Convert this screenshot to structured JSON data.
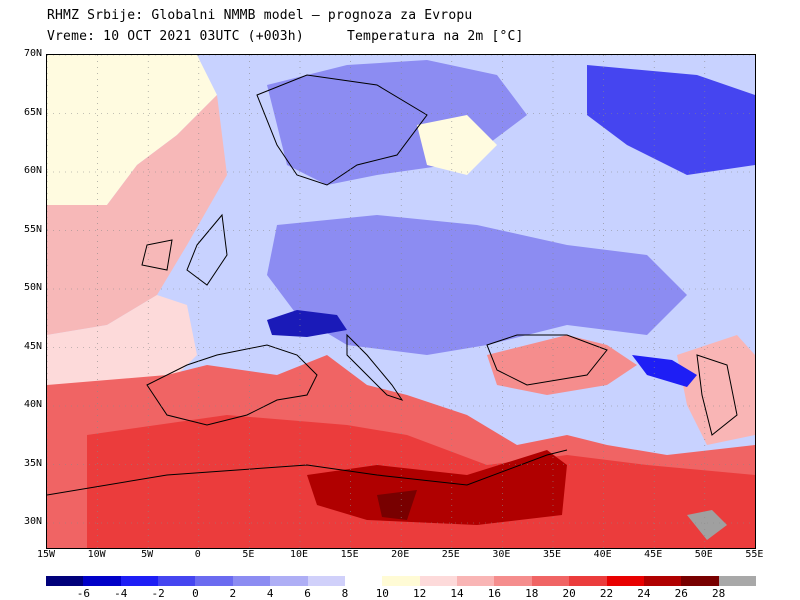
{
  "header": {
    "line1": "RHMZ Srbije: Globalni NMMB model – prognoza za Evropu",
    "line2_left": "Vreme: 10 OCT 2021 03UTC (+003h)",
    "line2_right": "Temperatura na 2m [°C]"
  },
  "map": {
    "lat_labels": [
      "70N",
      "65N",
      "60N",
      "55N",
      "50N",
      "45N",
      "40N",
      "35N",
      "30N"
    ],
    "lon_labels": [
      "15W",
      "10W",
      "5W",
      "0",
      "5E",
      "10E",
      "15E",
      "20E",
      "25E",
      "30E",
      "35E",
      "40E",
      "45E",
      "50E",
      "55E"
    ],
    "variable": "Temperature at 2m",
    "palette": {
      "sea_warm": "#f23a3a",
      "hot": "#8b0000",
      "cold_core": "#1a1ab8",
      "cool": "#7d8cf0",
      "mild": "#c8d2ff",
      "neutral": "#fffbe0",
      "warm_light": "#f7b8b8",
      "mountain_grey": "#a0a0a0",
      "coast_line": "#000000"
    }
  },
  "colorbar": {
    "labels": [
      "-6",
      "-4",
      "-2",
      "0",
      "2",
      "4",
      "6",
      "8",
      "10",
      "12",
      "14",
      "16",
      "18",
      "20",
      "22",
      "24",
      "26",
      "28"
    ],
    "colors": [
      "#00007a",
      "#0000c8",
      "#1e1ef5",
      "#4545f0",
      "#6b6bf0",
      "#8c8cf2",
      "#aeaef5",
      "#d0d0fa",
      "#ffffff",
      "#fffbd5",
      "#fddada",
      "#f9b5b5",
      "#f58d8d",
      "#f06464",
      "#eb3c3c",
      "#e80000",
      "#b00000",
      "#780000",
      "#a8a8a8"
    ]
  }
}
